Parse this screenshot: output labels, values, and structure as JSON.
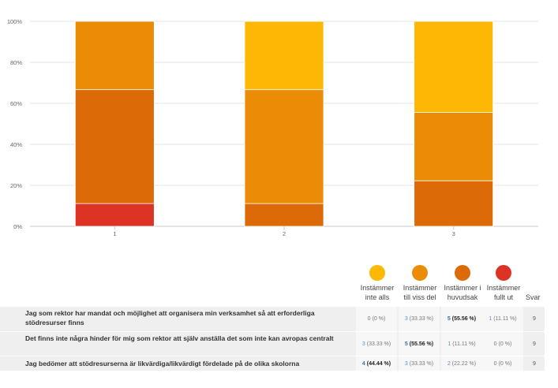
{
  "chart_data": {
    "type": "bar",
    "stacked": true,
    "categories": [
      "1",
      "2",
      "3"
    ],
    "series": [
      {
        "name": "Instämmer fullt ut",
        "color": "#dc3324",
        "values": [
          11.11,
          0,
          0
        ]
      },
      {
        "name": "Instämmer i huvudsak",
        "color": "#dc6a06",
        "values": [
          55.56,
          11.11,
          22.22
        ]
      },
      {
        "name": "Instämmer till viss del",
        "color": "#ea8c05",
        "values": [
          33.33,
          55.56,
          33.33
        ]
      },
      {
        "name": "Instämmer inte alls",
        "color": "#fcb804",
        "values": [
          0,
          33.33,
          44.44
        ]
      }
    ],
    "ylim": [
      0,
      100
    ],
    "yticks": [
      "0%",
      "20%",
      "40%",
      "60%",
      "80%",
      "100%"
    ],
    "grid": true
  },
  "legend": [
    {
      "line1": "Instämmer",
      "line2": "inte alls",
      "color": "#fcb804"
    },
    {
      "line1": "Instämmer",
      "line2": "till viss del",
      "color": "#ea8c05"
    },
    {
      "line1": "Instämmer i",
      "line2": "huvudsak",
      "color": "#dc6a06"
    },
    {
      "line1": "Instämmer",
      "line2": "fullt ut",
      "color": "#dc3324"
    }
  ],
  "table": {
    "svar_header": "Svar",
    "rows": [
      {
        "question": "Jag som rektor har mandat och möjlighet att organisera min verksamhet så att erforderliga stödresurser finns",
        "cells": [
          {
            "n": "0",
            "pct": "(0 %)"
          },
          {
            "n": "3",
            "pct": "(33.33 %)"
          },
          {
            "n": "5",
            "pct": "(55.56 %)"
          },
          {
            "n": "1",
            "pct": "(11.11 %)"
          }
        ],
        "best": 2,
        "svar": "9"
      },
      {
        "question": "Det finns inte några hinder för mig som rektor att själv anställa det som inte kan avropas centralt",
        "cells": [
          {
            "n": "3",
            "pct": "(33.33 %)"
          },
          {
            "n": "5",
            "pct": "(55.56 %)"
          },
          {
            "n": "1",
            "pct": "(11.11 %)"
          },
          {
            "n": "0",
            "pct": "(0 %)"
          }
        ],
        "best": 1,
        "svar": "9"
      },
      {
        "question": "Jag bedömer att stödresurserna är likvärdiga/likvärdigt fördelade på de olika skolorna",
        "cells": [
          {
            "n": "4",
            "pct": "(44.44 %)"
          },
          {
            "n": "3",
            "pct": "(33.33 %)"
          },
          {
            "n": "2",
            "pct": "(22.22 %)"
          },
          {
            "n": "0",
            "pct": "(0 %)"
          }
        ],
        "best": 0,
        "svar": "9"
      }
    ]
  }
}
